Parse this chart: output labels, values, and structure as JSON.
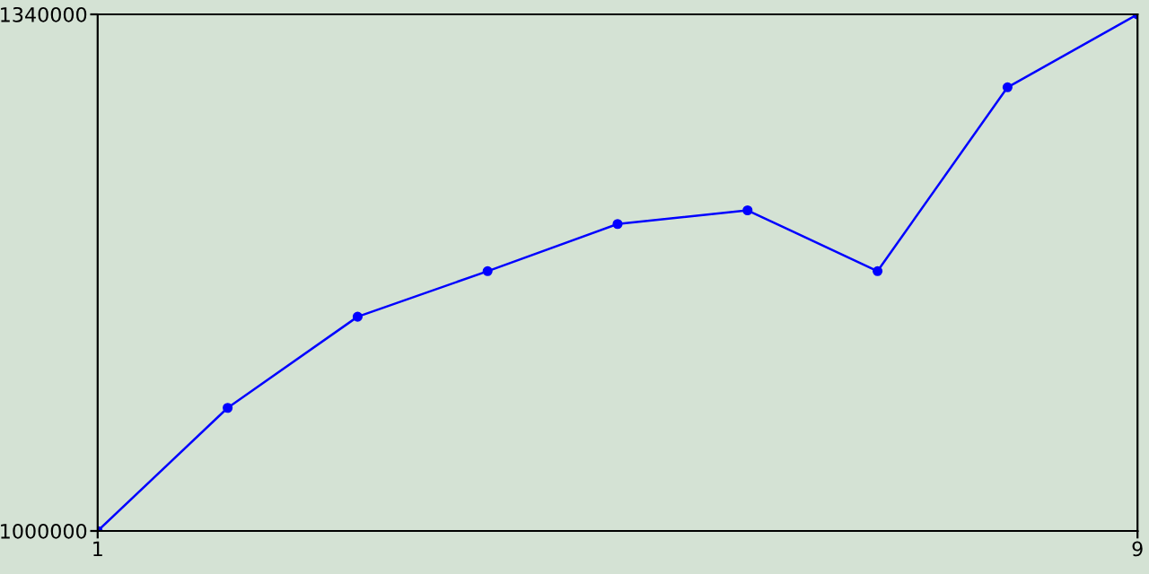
{
  "chart_data": {
    "type": "line",
    "x": [
      1,
      2,
      3,
      4,
      5,
      6,
      7,
      8,
      9
    ],
    "series": [
      {
        "color": "#0000ff",
        "values": [
          1000000,
          1081000,
          1141000,
          1171000,
          1202000,
          1211000,
          1171000,
          1292000,
          1340000
        ]
      }
    ],
    "xlim": [
      1,
      9
    ],
    "xticks": [
      1,
      9
    ],
    "ylim": [
      1000000,
      1340000
    ],
    "yticks": [
      1000000,
      1340000
    ],
    "marker": "circle",
    "line_style": "solid"
  }
}
